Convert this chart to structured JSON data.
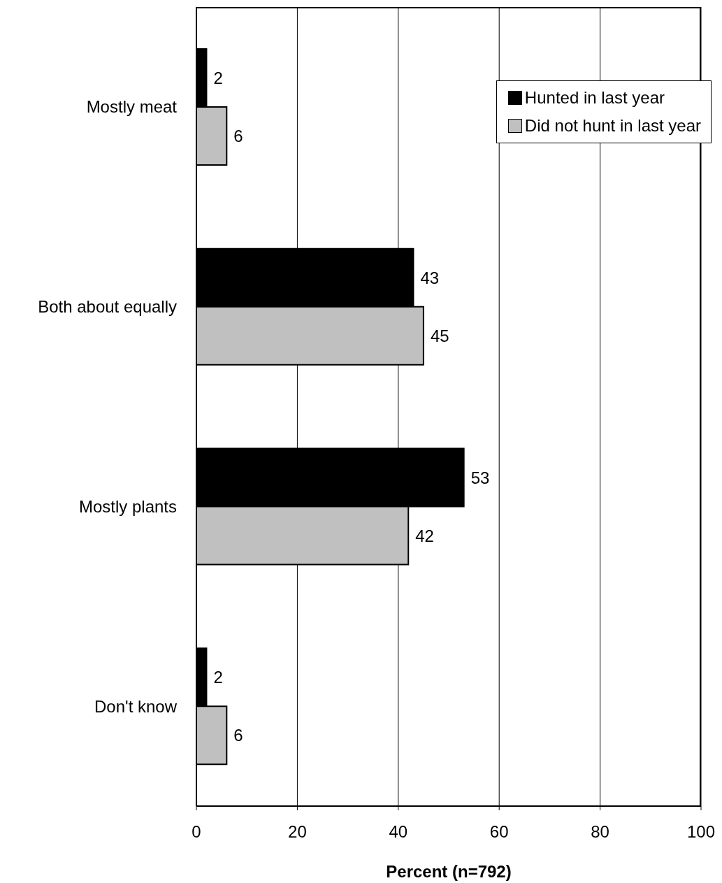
{
  "chart_data": {
    "type": "bar",
    "orientation": "horizontal",
    "xlabel": "Percent (n=792)",
    "categories": [
      "Mostly meat",
      "Both about equally",
      "Mostly plants",
      "Don't know"
    ],
    "series": [
      {
        "name": "Hunted in last year",
        "color": "#000000",
        "values": [
          2,
          43,
          53,
          2
        ]
      },
      {
        "name": "Did not hunt in last year",
        "color": "#c0c0c0",
        "values": [
          6,
          45,
          42,
          6
        ]
      }
    ],
    "xlim": [
      0,
      100
    ],
    "xticks": [
      0,
      20,
      40,
      60,
      80,
      100
    ],
    "grid": "x",
    "legend": "top right",
    "data_labels": true
  }
}
